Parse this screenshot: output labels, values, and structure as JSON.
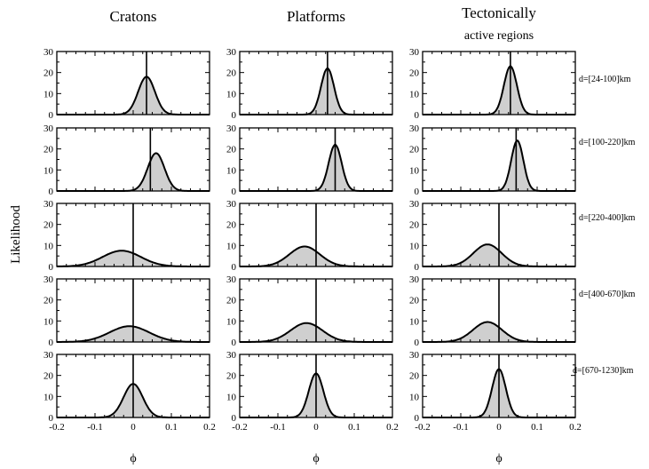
{
  "figure": {
    "ylabel": "Likelihood",
    "columns": [
      {
        "title": "Cratons",
        "subtitle": ""
      },
      {
        "title": "Platforms",
        "subtitle": ""
      },
      {
        "title": "Tectonically",
        "subtitle": "active regions"
      }
    ],
    "rows": [
      "d=[24-100]km",
      "d=[100-220]km",
      "d=[220-400]km",
      "d=[400-670]km",
      "d=[670-1230]km"
    ],
    "xlabel": "ϕ",
    "x_ticks": [
      "-0.2",
      "-0.1",
      "0",
      "0.1",
      "0.2"
    ],
    "y_ticks": [
      "0",
      "10",
      "20",
      "30"
    ]
  },
  "chart_data": {
    "type": "area",
    "description_of_layout": "5 rows x 3 columns small multiples of likelihood distributions",
    "xlim": [
      -0.2,
      0.2
    ],
    "ylim": [
      0,
      30
    ],
    "panels": [
      {
        "column": "Cratons",
        "row": "d=[24-100]km",
        "mean": 0.035,
        "std": 0.022,
        "peak": 18,
        "line_x": 0.035
      },
      {
        "column": "Platforms",
        "row": "d=[24-100]km",
        "mean": 0.03,
        "std": 0.017,
        "peak": 22,
        "line_x": 0.03
      },
      {
        "column": "Tectonically active regions",
        "row": "d=[24-100]km",
        "mean": 0.03,
        "std": 0.017,
        "peak": 23,
        "line_x": 0.03
      },
      {
        "column": "Cratons",
        "row": "d=[100-220]km",
        "mean": 0.06,
        "std": 0.022,
        "peak": 18,
        "line_x": 0.045
      },
      {
        "column": "Platforms",
        "row": "d=[100-220]km",
        "mean": 0.05,
        "std": 0.017,
        "peak": 22,
        "line_x": 0.05
      },
      {
        "column": "Tectonically active regions",
        "row": "d=[100-220]km",
        "mean": 0.048,
        "std": 0.016,
        "peak": 24,
        "line_x": 0.045
      },
      {
        "column": "Cratons",
        "row": "d=[220-400]km",
        "mean": -0.03,
        "std": 0.05,
        "peak": 7.5,
        "line_x": 0.0
      },
      {
        "column": "Platforms",
        "row": "d=[220-400]km",
        "mean": -0.03,
        "std": 0.04,
        "peak": 9.5,
        "line_x": 0.0
      },
      {
        "column": "Tectonically active regions",
        "row": "d=[220-400]km",
        "mean": -0.03,
        "std": 0.037,
        "peak": 10.5,
        "line_x": 0.0
      },
      {
        "column": "Cratons",
        "row": "d=[400-670]km",
        "mean": -0.01,
        "std": 0.052,
        "peak": 7.5,
        "line_x": 0.0
      },
      {
        "column": "Platforms",
        "row": "d=[400-670]km",
        "mean": -0.025,
        "std": 0.042,
        "peak": 9,
        "line_x": 0.0
      },
      {
        "column": "Tectonically active regions",
        "row": "d=[400-670]km",
        "mean": -0.03,
        "std": 0.038,
        "peak": 9.5,
        "line_x": 0.0
      },
      {
        "column": "Cratons",
        "row": "d=[670-1230]km",
        "mean": 0.0,
        "std": 0.025,
        "peak": 16,
        "line_x": 0.0
      },
      {
        "column": "Platforms",
        "row": "d=[670-1230]km",
        "mean": 0.0,
        "std": 0.019,
        "peak": 21,
        "line_x": 0.0
      },
      {
        "column": "Tectonically active regions",
        "row": "d=[670-1230]km",
        "mean": 0.0,
        "std": 0.018,
        "peak": 23,
        "line_x": 0.0
      }
    ]
  }
}
